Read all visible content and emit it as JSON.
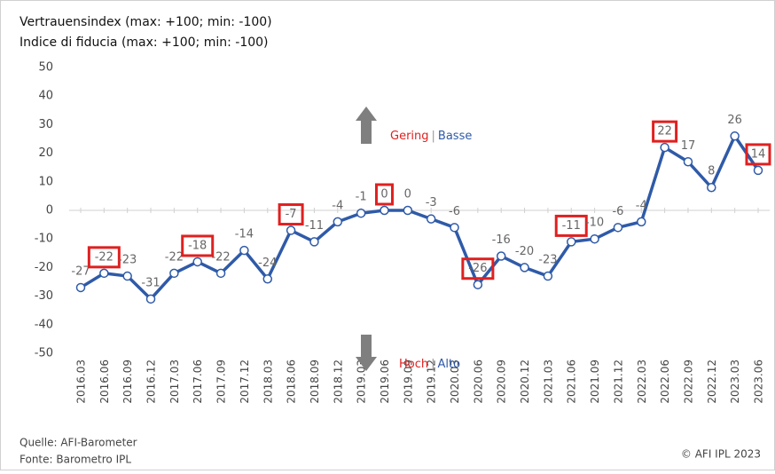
{
  "chart_data": {
    "type": "line",
    "title": "Vertrauensindex (max: +100; min: -100)",
    "subtitle": "Indice di fiducia (max: +100; min: -100)",
    "categories": [
      "2016.03",
      "2016.06",
      "2016.09",
      "2016.12",
      "2017.03",
      "2017.06",
      "2017.09",
      "2017.12",
      "2018.03",
      "2018.06",
      "2018.09",
      "2018.12",
      "2019.03",
      "2019.06",
      "2019.09",
      "2019.12",
      "2020.03",
      "2020.06",
      "2020.09",
      "2020.12",
      "2021.03",
      "2021.06",
      "2021.09",
      "2021.12",
      "2022.03",
      "2022.06",
      "2022.09",
      "2022.12",
      "2023.03",
      "2023.06"
    ],
    "series": [
      {
        "name": "Vertrauensindex",
        "color": "#2f5aa8",
        "values": [
          -27,
          -22,
          -23,
          -31,
          -22,
          -18,
          -22,
          -14,
          -24,
          -7,
          -11,
          -4,
          -1,
          0,
          0,
          -3,
          -6,
          -26,
          -16,
          -20,
          -23,
          -11,
          -10,
          -6,
          -4,
          22,
          17,
          8,
          26,
          14
        ]
      }
    ],
    "boxed": [
      1,
      5,
      9,
      13,
      17,
      21,
      25,
      29
    ],
    "box_color": "#e02020",
    "ylim": [
      -50,
      50
    ],
    "yticks": [
      -50,
      -40,
      -30,
      -20,
      -10,
      0,
      10,
      20,
      30,
      40,
      50
    ],
    "annotations": [
      {
        "parts": [
          "Gering",
          "|",
          "Basse"
        ],
        "direction": "up"
      },
      {
        "parts": [
          "Hoch",
          "|",
          "Alto"
        ],
        "direction": "down"
      }
    ],
    "source": [
      "Quelle: AFI-Barometer",
      "Fonte: Barometro IPL"
    ],
    "copyright": "© AFI IPL 2023"
  }
}
